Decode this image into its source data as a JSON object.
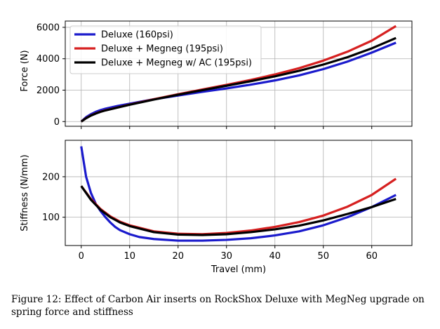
{
  "caption": {
    "prefix": "Figure 12:",
    "text": "Effect of Carbon Air inserts on RockShox Deluxe with MegNeg upgrade on spring force and stiffness"
  },
  "chart_data": [
    {
      "type": "line",
      "title": "",
      "xlabel": "",
      "ylabel": "Force (N)",
      "xlim": [
        -3.3,
        68.3
      ],
      "ylim": [
        -300,
        6400
      ],
      "xticks": [
        0,
        10,
        20,
        30,
        40,
        50,
        60
      ],
      "yticks": [
        0,
        2000,
        4000,
        6000
      ],
      "show_xtick_labels": false,
      "grid": true,
      "legend": "top-left",
      "series": [
        {
          "name": "Deluxe (160psi)",
          "color": "#1a1acc",
          "x": [
            0,
            1,
            2,
            3,
            4,
            5,
            7.5,
            10,
            15,
            20,
            25,
            30,
            35,
            40,
            45,
            50,
            55,
            60,
            65
          ],
          "y": [
            0,
            280,
            470,
            620,
            730,
            820,
            990,
            1140,
            1420,
            1660,
            1890,
            2110,
            2350,
            2620,
            2940,
            3340,
            3820,
            4390,
            5020
          ]
        },
        {
          "name": "Deluxe + Megneg (195psi)",
          "color": "#d62020",
          "x": [
            0,
            1,
            2,
            3,
            4,
            5,
            7.5,
            10,
            15,
            20,
            25,
            30,
            35,
            40,
            45,
            50,
            55,
            60,
            65
          ],
          "y": [
            0,
            220,
            390,
            520,
            630,
            720,
            900,
            1080,
            1420,
            1740,
            2040,
            2340,
            2650,
            3000,
            3400,
            3880,
            4450,
            5150,
            6080
          ]
        },
        {
          "name": "Deluxe + Megneg w/ AC (195psi)",
          "color": "#000000",
          "x": [
            0,
            1,
            2,
            3,
            4,
            5,
            7.5,
            10,
            15,
            20,
            25,
            30,
            35,
            40,
            45,
            50,
            55,
            60,
            65
          ],
          "y": [
            0,
            210,
            380,
            510,
            620,
            710,
            890,
            1070,
            1400,
            1710,
            2000,
            2280,
            2570,
            2880,
            3230,
            3630,
            4100,
            4660,
            5320
          ]
        }
      ]
    },
    {
      "type": "line",
      "title": "",
      "xlabel": "Travel (mm)",
      "ylabel": "Stiffness (N/mm)",
      "xlim": [
        -3.3,
        68.3
      ],
      "ylim": [
        30,
        290
      ],
      "xticks": [
        0,
        10,
        20,
        30,
        40,
        50,
        60
      ],
      "yticks": [
        100,
        200
      ],
      "grid": true,
      "series": [
        {
          "name": "Deluxe (160psi)",
          "color": "#1a1acc",
          "x": [
            0,
            1,
            2,
            3,
            4,
            5,
            6,
            7,
            8,
            10,
            12,
            15,
            20,
            25,
            30,
            35,
            40,
            45,
            50,
            55,
            60,
            65
          ],
          "y": [
            275,
            200,
            160,
            133,
            115,
            100,
            87,
            76,
            68,
            58,
            51,
            46,
            42,
            42,
            44,
            48,
            55,
            65,
            80,
            100,
            125,
            155
          ]
        },
        {
          "name": "Deluxe + Megneg (195psi)",
          "color": "#d62020",
          "x": [
            0,
            2,
            4,
            6,
            8,
            10,
            15,
            20,
            25,
            30,
            35,
            40,
            45,
            50,
            55,
            60,
            65
          ],
          "y": [
            177,
            145,
            120,
            102,
            89,
            80,
            65,
            59,
            58,
            61,
            67,
            76,
            88,
            104,
            126,
            155,
            195
          ]
        },
        {
          "name": "Deluxe + Megneg w/ AC (195psi)",
          "color": "#000000",
          "x": [
            0,
            2,
            4,
            6,
            8,
            10,
            15,
            20,
            25,
            30,
            35,
            40,
            45,
            50,
            55,
            60,
            65
          ],
          "y": [
            177,
            143,
            118,
            100,
            87,
            78,
            63,
            57,
            56,
            58,
            63,
            70,
            79,
            92,
            108,
            125,
            145
          ]
        }
      ]
    }
  ]
}
